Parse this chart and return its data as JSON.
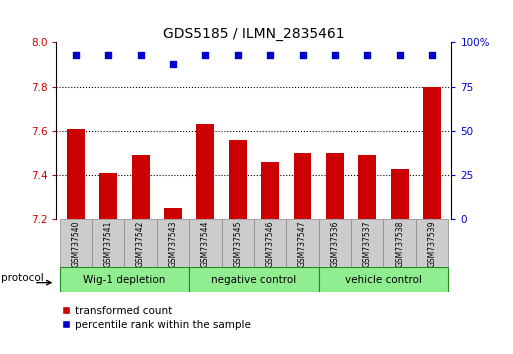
{
  "title": "GDS5185 / ILMN_2835461",
  "samples": [
    "GSM737540",
    "GSM737541",
    "GSM737542",
    "GSM737543",
    "GSM737544",
    "GSM737545",
    "GSM737546",
    "GSM737547",
    "GSM737536",
    "GSM737537",
    "GSM737538",
    "GSM737539"
  ],
  "transformed_counts": [
    7.61,
    7.41,
    7.49,
    7.25,
    7.63,
    7.56,
    7.46,
    7.5,
    7.5,
    7.49,
    7.43,
    7.8
  ],
  "percentile_ranks": [
    93,
    93,
    93,
    88,
    93,
    93,
    93,
    93,
    93,
    93,
    93,
    93
  ],
  "ylim_left": [
    7.2,
    8.0
  ],
  "ylim_right": [
    0,
    100
  ],
  "yticks_left": [
    7.2,
    7.4,
    7.6,
    7.8,
    8.0
  ],
  "yticks_right": [
    0,
    25,
    50,
    75,
    100
  ],
  "yticks_right_labels": [
    "0",
    "25",
    "50",
    "75",
    "100%"
  ],
  "hlines": [
    7.4,
    7.6,
    7.8
  ],
  "bar_color": "#cc0000",
  "dot_color": "#0000cc",
  "sample_box_color": "#cccccc",
  "group_border_color": "#228822",
  "group_fill_color": "#90ee90",
  "legend_red_label": "transformed count",
  "legend_blue_label": "percentile rank within the sample",
  "protocol_label": "protocol",
  "group_labels": [
    "Wig-1 depletion",
    "negative control",
    "vehicle control"
  ],
  "group_starts": [
    0,
    4,
    8
  ],
  "group_ends": [
    4,
    8,
    12
  ]
}
